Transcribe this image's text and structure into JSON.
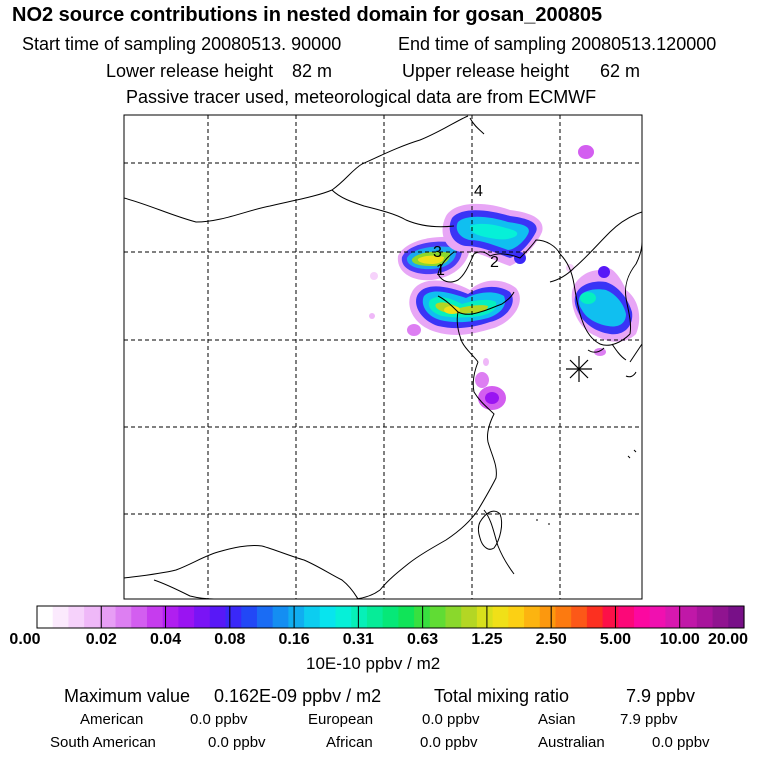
{
  "header": {
    "title": "NO2 source contributions in nested domain for gosan_200805",
    "start_label": "Start time of sampling 20080513. 90000",
    "end_label": "End time of sampling 20080513.120000",
    "lower_label": "Lower release height",
    "lower_value": "82 m",
    "upper_label": "Upper release height",
    "upper_value": "62 m",
    "tracer_note": "Passive tracer used, meteorological data are from ECMWF"
  },
  "chart_data": {
    "type": "heatmap",
    "title": "NO2 source contributions in nested domain for gosan_200805",
    "source_labels": [
      "1",
      "2",
      "3",
      "4"
    ],
    "receptor_marker": "asterisk",
    "grid_lines": {
      "vertical": 5,
      "horizontal": 5,
      "style": "dashed"
    },
    "colorbar": {
      "tick_labels": [
        "0.00",
        "0.02",
        "0.04",
        "0.08",
        "0.16",
        "0.31",
        "0.63",
        "1.25",
        "2.50",
        "5.00",
        "10.00",
        "20.00"
      ],
      "units": "10E-10 ppbv / m2",
      "colors": [
        "#ffffff",
        "#fbeafd",
        "#f6d2fb",
        "#efb8f8",
        "#e79ef5",
        "#dd7ff2",
        "#d35ef0",
        "#c63cee",
        "#b01ff0",
        "#9a14f2",
        "#7a14f5",
        "#5818f7",
        "#3a28f8",
        "#2248f6",
        "#1a6cf4",
        "#148ef2",
        "#10aef0",
        "#0ccdf0",
        "#08e4ee",
        "#06f0d8",
        "#06f0b8",
        "#06ec98",
        "#06e878",
        "#10e458",
        "#38e040",
        "#60dc34",
        "#8ad82c",
        "#b4d624",
        "#d8e01c",
        "#f0e018",
        "#fcd014",
        "#fcb410",
        "#fc980e",
        "#fc7a10",
        "#fc5818",
        "#fc3020",
        "#fc1048",
        "#fc0878",
        "#fc08a0",
        "#f010b0",
        "#d818b0",
        "#c018a8",
        "#a8149c",
        "#901490",
        "#781088"
      ]
    },
    "stats": {
      "max_label": "Maximum value",
      "max_value": "0.162E-09 ppbv / m2",
      "total_label": "Total mixing ratio",
      "total_value": "7.9 ppbv"
    },
    "regions": [
      {
        "name": "American",
        "value": "0.0 ppbv"
      },
      {
        "name": "European",
        "value": "0.0 ppbv"
      },
      {
        "name": "Asian",
        "value": "7.9 ppbv"
      },
      {
        "name": "South American",
        "value": "0.0 ppbv"
      },
      {
        "name": "African",
        "value": "0.0 ppbv"
      },
      {
        "name": "Australian",
        "value": "0.0 ppbv"
      }
    ]
  }
}
